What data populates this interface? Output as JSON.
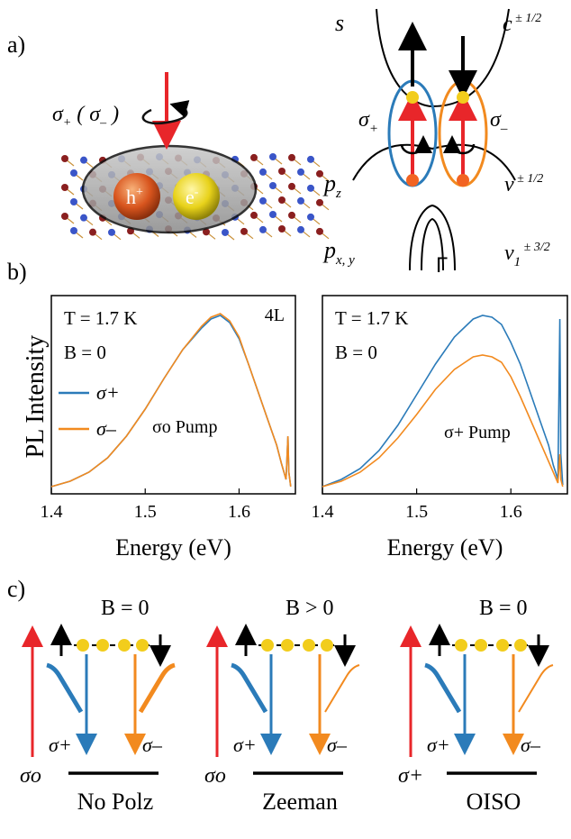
{
  "panel_labels": {
    "a": "a)",
    "b": "b)",
    "c": "c)"
  },
  "panel_a": {
    "pump_label": "σ+ ( σ– )",
    "hole_label": "h+",
    "electron_label": "e-",
    "band_labels": {
      "s": "s",
      "c_band": "c ± 1/2",
      "pz": "pz",
      "v_band": "v ± 1/2",
      "pxy": "px, y",
      "v1_band": "v1 ± 3/2",
      "gamma": "Γ",
      "sigma_plus": "σ+",
      "sigma_minus": "σ–"
    },
    "colors": {
      "blue_ring": "#2b7bb9",
      "orange_ring": "#f28a1f",
      "red_arrow": "#e8262a",
      "yellow_dot": "#f2cd1c",
      "red_dot": "#f26322"
    }
  },
  "chart_data": [
    {
      "type": "line",
      "title": "",
      "annotation_tl": "T = 1.7 K",
      "annotation_b": "B = 0",
      "annotation_tr": "4L",
      "pump_label": "σo Pump",
      "xlabel": "Energy (eV)",
      "ylabel": "PL Intensity",
      "xlim": [
        1.4,
        1.66
      ],
      "xticks": [
        "1.4",
        "1.5",
        "1.6"
      ],
      "legend": [
        "σ+",
        "σ–"
      ],
      "x": [
        1.4,
        1.42,
        1.44,
        1.46,
        1.48,
        1.5,
        1.52,
        1.54,
        1.56,
        1.57,
        1.58,
        1.59,
        1.6,
        1.61,
        1.62,
        1.63,
        1.64,
        1.645,
        1.65,
        1.652,
        1.653,
        1.655
      ],
      "series": [
        {
          "name": "σ+",
          "color": "#2b7bb9",
          "values": [
            0.02,
            0.05,
            0.1,
            0.18,
            0.3,
            0.45,
            0.62,
            0.78,
            0.9,
            0.95,
            0.97,
            0.93,
            0.84,
            0.7,
            0.55,
            0.4,
            0.25,
            0.15,
            0.06,
            0.3,
            0.1,
            0.02
          ]
        },
        {
          "name": "σ–",
          "color": "#f28a1f",
          "values": [
            0.02,
            0.05,
            0.1,
            0.18,
            0.3,
            0.45,
            0.62,
            0.78,
            0.91,
            0.96,
            0.98,
            0.94,
            0.85,
            0.7,
            0.55,
            0.4,
            0.25,
            0.15,
            0.06,
            0.3,
            0.1,
            0.02
          ]
        }
      ]
    },
    {
      "type": "line",
      "title": "",
      "annotation_tl": "T = 1.7 K",
      "annotation_b": "B = 0",
      "pump_label": "σ+ Pump",
      "xlabel": "Energy (eV)",
      "ylabel": "",
      "xlim": [
        1.4,
        1.66
      ],
      "xticks": [
        "1.4",
        "1.5",
        "1.6"
      ],
      "x": [
        1.4,
        1.42,
        1.44,
        1.46,
        1.48,
        1.5,
        1.52,
        1.54,
        1.56,
        1.57,
        1.58,
        1.59,
        1.6,
        1.61,
        1.62,
        1.63,
        1.64,
        1.645,
        1.65,
        1.652,
        1.653,
        1.655
      ],
      "series": [
        {
          "name": "σ+",
          "color": "#2b7bb9",
          "values": [
            0.02,
            0.06,
            0.12,
            0.22,
            0.36,
            0.53,
            0.7,
            0.85,
            0.95,
            0.97,
            0.96,
            0.92,
            0.82,
            0.7,
            0.55,
            0.4,
            0.25,
            0.14,
            0.06,
            0.95,
            0.2,
            0.03
          ]
        },
        {
          "name": "σ–",
          "color": "#f28a1f",
          "values": [
            0.02,
            0.05,
            0.1,
            0.18,
            0.29,
            0.42,
            0.56,
            0.67,
            0.74,
            0.75,
            0.74,
            0.71,
            0.63,
            0.52,
            0.4,
            0.28,
            0.16,
            0.1,
            0.04,
            0.2,
            0.06,
            0.02
          ]
        }
      ]
    }
  ],
  "panel_c": [
    {
      "b_label": "B = 0",
      "pump": "σo",
      "caption": "No Polz",
      "sigma_plus": "σ+",
      "sigma_minus": "σ–"
    },
    {
      "b_label": "B > 0",
      "pump": "σo",
      "caption": "Zeeman",
      "sigma_plus": "σ+",
      "sigma_minus": "σ–"
    },
    {
      "b_label": "B = 0",
      "pump": "σ+",
      "caption": "OISO",
      "sigma_plus": "σ+",
      "sigma_minus": "σ–"
    }
  ]
}
